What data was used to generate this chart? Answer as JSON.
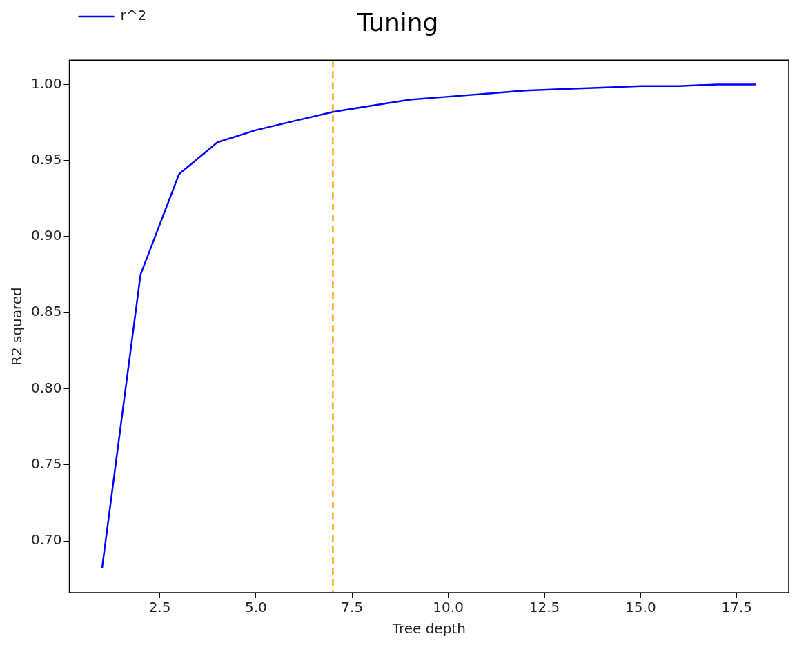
{
  "chart_data": {
    "type": "line",
    "title": "Tuning",
    "xlabel": "Tree depth",
    "ylabel": "R2 squared",
    "x": [
      1,
      2,
      3,
      4,
      5,
      6,
      7,
      8,
      9,
      10,
      11,
      12,
      13,
      14,
      15,
      16,
      17,
      18
    ],
    "series": [
      {
        "name": "r^2",
        "color": "#0000ff",
        "values": [
          0.682,
          0.875,
          0.941,
          0.962,
          0.97,
          0.976,
          0.982,
          0.986,
          0.99,
          0.992,
          0.994,
          0.996,
          0.997,
          0.998,
          0.999,
          0.999,
          1.0,
          1.0
        ]
      }
    ],
    "xlim": [
      0.15,
      18.85
    ],
    "xticks": [
      {
        "value": 2.5,
        "label": "2.5"
      },
      {
        "value": 5,
        "label": "5.0"
      },
      {
        "value": 7.5,
        "label": "7.5"
      },
      {
        "value": 10,
        "label": "10.0"
      },
      {
        "value": 12.5,
        "label": "12.5"
      },
      {
        "value": 15,
        "label": "15.0"
      },
      {
        "value": 17.5,
        "label": "17.5"
      }
    ],
    "ylim": [
      0.666,
      1.016
    ],
    "yticks": [
      {
        "value": 0.7,
        "label": "0.70"
      },
      {
        "value": 0.75,
        "label": "0.75"
      },
      {
        "value": 0.8,
        "label": "0.80"
      },
      {
        "value": 0.85,
        "label": "0.85"
      },
      {
        "value": 0.9,
        "label": "0.90"
      },
      {
        "value": 0.95,
        "label": "0.95"
      },
      {
        "value": 1,
        "label": "1.00"
      }
    ],
    "ref_lines": [
      {
        "axis": "x",
        "value": 7,
        "color": "#ffa500",
        "line_style": "dashed"
      }
    ],
    "legend": "top left",
    "grid": false,
    "marker": "none",
    "line_style": "solid"
  }
}
